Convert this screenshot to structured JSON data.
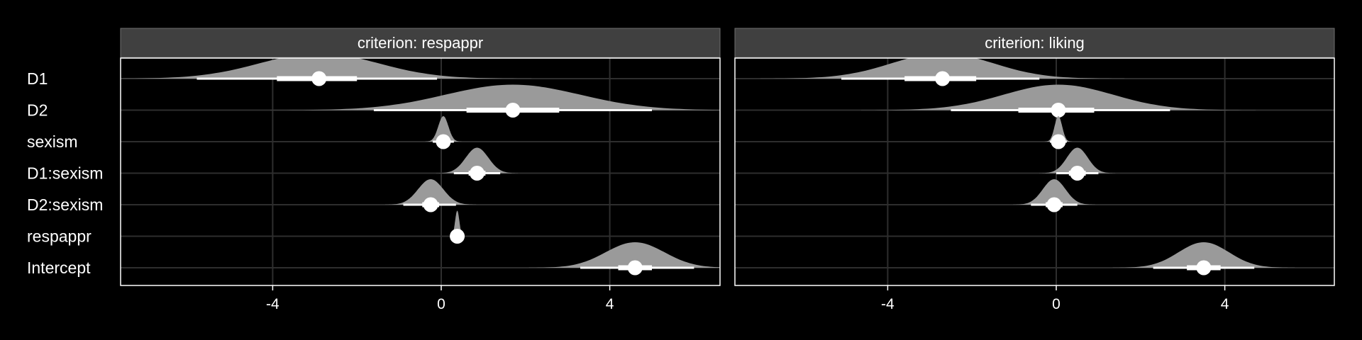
{
  "chart_data": {
    "type": "halfeye-interval",
    "x_ticks": [
      -4,
      0,
      4
    ],
    "xlim": [
      -7.8,
      6.5
    ],
    "grid": true,
    "rows": [
      "D1",
      "D2",
      "sexism",
      "D1:sexism",
      "D2:sexism",
      "respappr",
      "Intercept"
    ],
    "panels": [
      {
        "strip": "criterion: respappr",
        "estimates": [
          {
            "term": "D1",
            "median": -2.9,
            "inner": [
              -3.9,
              -2.0
            ],
            "outer": [
              -5.8,
              -0.1
            ],
            "sd": 1.4
          },
          {
            "term": "D2",
            "median": 1.7,
            "inner": [
              0.6,
              2.8
            ],
            "outer": [
              -1.6,
              5.0
            ],
            "sd": 1.6
          },
          {
            "term": "sexism",
            "median": 0.05,
            "inner": [
              -0.05,
              0.15
            ],
            "outer": [
              -0.2,
              0.3
            ],
            "sd": 0.12
          },
          {
            "term": "D1:sexism",
            "median": 0.85,
            "inner": [
              0.65,
              1.05
            ],
            "outer": [
              0.3,
              1.4
            ],
            "sd": 0.27
          },
          {
            "term": "D2:sexism",
            "median": -0.25,
            "inner": [
              -0.45,
              -0.05
            ],
            "outer": [
              -0.9,
              0.35
            ],
            "sd": 0.3
          },
          {
            "term": "respappr",
            "median": 0.38,
            "inner": [
              0.33,
              0.43
            ],
            "outer": [
              0.28,
              0.48
            ],
            "sd": 0.05
          },
          {
            "term": "Intercept",
            "median": 4.6,
            "inner": [
              4.2,
              5.0
            ],
            "outer": [
              3.3,
              6.0
            ],
            "sd": 0.7
          }
        ]
      },
      {
        "strip": "criterion: liking",
        "estimates": [
          {
            "term": "D1",
            "median": -2.7,
            "inner": [
              -3.6,
              -1.9
            ],
            "outer": [
              -5.1,
              -0.4
            ],
            "sd": 1.2
          },
          {
            "term": "D2",
            "median": 0.05,
            "inner": [
              -0.9,
              0.9
            ],
            "outer": [
              -2.5,
              2.7
            ],
            "sd": 1.3
          },
          {
            "term": "sexism",
            "median": 0.05,
            "inner": [
              -0.02,
              0.12
            ],
            "outer": [
              -0.15,
              0.25
            ],
            "sd": 0.09
          },
          {
            "term": "D1:sexism",
            "median": 0.5,
            "inner": [
              0.3,
              0.7
            ],
            "outer": [
              0.0,
              1.0
            ],
            "sd": 0.25
          },
          {
            "term": "D2:sexism",
            "median": -0.05,
            "inner": [
              -0.25,
              0.15
            ],
            "outer": [
              -0.6,
              0.5
            ],
            "sd": 0.27
          },
          {
            "term": "respappr",
            "median": null,
            "inner": null,
            "outer": null,
            "sd": null
          },
          {
            "term": "Intercept",
            "median": 3.5,
            "inner": [
              3.1,
              3.9
            ],
            "outer": [
              2.3,
              4.7
            ],
            "sd": 0.6
          }
        ]
      }
    ],
    "colors": {
      "background": "#000000",
      "panel_border": "#ffffff",
      "strip_fill": "#404040",
      "strip_border": "#6e6e6e",
      "grid": "#2e2e2e",
      "density": "#9a9a9a",
      "interval": "#ffffff",
      "point": "#ffffff"
    }
  }
}
